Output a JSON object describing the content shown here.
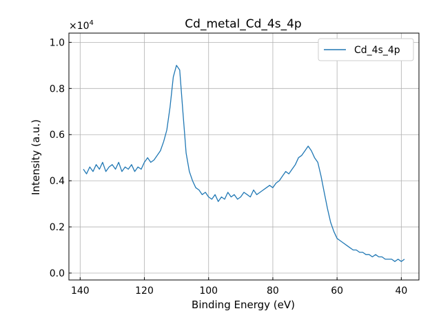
{
  "chart_data": {
    "type": "line",
    "title": "Cd_metal_Cd_4s_4p",
    "xlabel": "Binding Energy (eV)",
    "ylabel": "Intensity (a.u.)",
    "y_scale_factor_label": "×10",
    "y_scale_exponent": "4",
    "xlim": [
      143.5,
      34.5
    ],
    "ylim": [
      -0.03,
      1.04
    ],
    "x_inverted": true,
    "grid": true,
    "legend_position": "top-right",
    "x_ticks": [
      {
        "value": 140,
        "label": "140"
      },
      {
        "value": 120,
        "label": "120"
      },
      {
        "value": 100,
        "label": "100"
      },
      {
        "value": 80,
        "label": "80"
      },
      {
        "value": 60,
        "label": "60"
      },
      {
        "value": 40,
        "label": "40"
      }
    ],
    "y_ticks": [
      {
        "value": 0.0,
        "label": "0.0"
      },
      {
        "value": 0.2,
        "label": "0.2"
      },
      {
        "value": 0.4,
        "label": "0.4"
      },
      {
        "value": 0.6,
        "label": "0.6"
      },
      {
        "value": 0.8,
        "label": "0.8"
      },
      {
        "value": 1.0,
        "label": "1.0"
      }
    ],
    "series": [
      {
        "name": "Cd_4s_4p",
        "color": "#1f77b4",
        "x": [
          139,
          138,
          137,
          136,
          135,
          134,
          133,
          132,
          131,
          130,
          129,
          128,
          127,
          126,
          125,
          124,
          123,
          122,
          121,
          120,
          119,
          118,
          117,
          116,
          115,
          114,
          113,
          112,
          111,
          110,
          109,
          108,
          107,
          106,
          105,
          104,
          103,
          102,
          101,
          100,
          99,
          98,
          97,
          96,
          95,
          94,
          93,
          92,
          91,
          90,
          89,
          88,
          87,
          86,
          85,
          84,
          83,
          82,
          81,
          80,
          79,
          78,
          77,
          76,
          75,
          74,
          73,
          72,
          71,
          70,
          69,
          68,
          67,
          66,
          65,
          64,
          63,
          62,
          61,
          60,
          59,
          58,
          57,
          56,
          55,
          54,
          53,
          52,
          51,
          50,
          49,
          48,
          47,
          46,
          45,
          44,
          43,
          42,
          41,
          40,
          39
        ],
        "values": [
          0.45,
          0.43,
          0.46,
          0.44,
          0.47,
          0.45,
          0.48,
          0.44,
          0.46,
          0.47,
          0.45,
          0.48,
          0.44,
          0.46,
          0.45,
          0.47,
          0.44,
          0.46,
          0.45,
          0.48,
          0.5,
          0.48,
          0.49,
          0.51,
          0.53,
          0.57,
          0.62,
          0.72,
          0.85,
          0.9,
          0.88,
          0.7,
          0.52,
          0.44,
          0.4,
          0.37,
          0.36,
          0.34,
          0.35,
          0.33,
          0.32,
          0.34,
          0.31,
          0.33,
          0.32,
          0.35,
          0.33,
          0.34,
          0.32,
          0.33,
          0.35,
          0.34,
          0.33,
          0.36,
          0.34,
          0.35,
          0.36,
          0.37,
          0.38,
          0.37,
          0.39,
          0.4,
          0.42,
          0.44,
          0.43,
          0.45,
          0.47,
          0.5,
          0.51,
          0.53,
          0.55,
          0.53,
          0.5,
          0.48,
          0.42,
          0.35,
          0.28,
          0.22,
          0.18,
          0.15,
          0.14,
          0.13,
          0.12,
          0.11,
          0.1,
          0.1,
          0.09,
          0.09,
          0.08,
          0.08,
          0.07,
          0.08,
          0.07,
          0.07,
          0.06,
          0.06,
          0.06,
          0.05,
          0.06,
          0.05,
          0.06
        ]
      }
    ]
  }
}
